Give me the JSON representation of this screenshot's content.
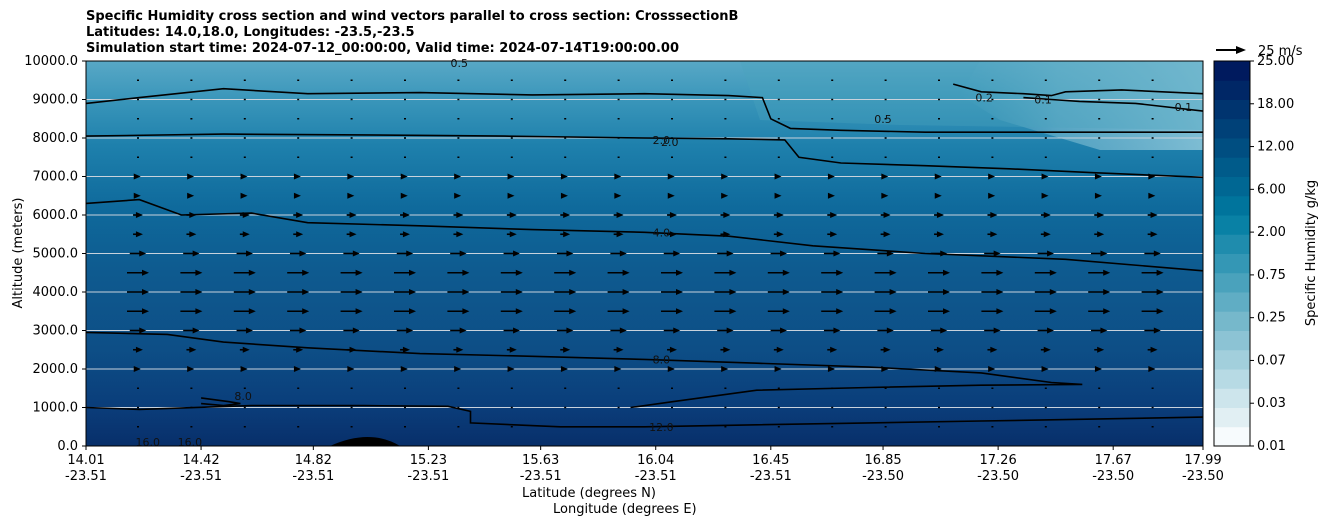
{
  "chart_data": {
    "type": "contour",
    "title_lines": [
      "Specific Humidity cross section and wind vectors parallel to cross section: CrosssectionB",
      "Latitudes: 14.0,18.0, Longitudes: -23.5,-23.5",
      "Simulation start time: 2024-07-12_00:00:00, Valid time: 2024-07-14T19:00:00.00"
    ],
    "xlabel_lines": [
      "Latitude (degrees N)",
      "Longitude (degrees E)"
    ],
    "ylabel": "Altitude (meters)",
    "x_range": [
      14.01,
      17.99
    ],
    "y_range": [
      0,
      10000
    ],
    "x_ticks": [
      {
        "lat": "14.01",
        "lon": "-23.51",
        "value": 14.01
      },
      {
        "lat": "14.42",
        "lon": "-23.51",
        "value": 14.42
      },
      {
        "lat": "14.82",
        "lon": "-23.51",
        "value": 14.82
      },
      {
        "lat": "15.23",
        "lon": "-23.51",
        "value": 15.23
      },
      {
        "lat": "15.63",
        "lon": "-23.51",
        "value": 15.63
      },
      {
        "lat": "16.04",
        "lon": "-23.51",
        "value": 16.04
      },
      {
        "lat": "16.45",
        "lon": "-23.51",
        "value": 16.45
      },
      {
        "lat": "16.85",
        "lon": "-23.50",
        "value": 16.85
      },
      {
        "lat": "17.26",
        "lon": "-23.50",
        "value": 17.26
      },
      {
        "lat": "17.67",
        "lon": "-23.50",
        "value": 17.67
      },
      {
        "lat": "17.99",
        "lon": "-23.50",
        "value": 17.99
      }
    ],
    "y_ticks": [
      {
        "label": "0.0",
        "value": 0
      },
      {
        "label": "1000.0",
        "value": 1000
      },
      {
        "label": "2000.0",
        "value": 2000
      },
      {
        "label": "3000.0",
        "value": 3000
      },
      {
        "label": "4000.0",
        "value": 4000
      },
      {
        "label": "5000.0",
        "value": 5000
      },
      {
        "label": "6000.0",
        "value": 6000
      },
      {
        "label": "7000.0",
        "value": 7000
      },
      {
        "label": "8000.0",
        "value": 8000
      },
      {
        "label": "9000.0",
        "value": 9000
      },
      {
        "label": "10000.0",
        "value": 10000
      }
    ],
    "colorbar": {
      "label": "Specific Humidity g/kg",
      "levels": [
        "0.01",
        "0.02",
        "0.03",
        "0.05",
        "0.07",
        "0.1",
        "0.15",
        "0.25",
        "0.35",
        "0.5",
        "0.75",
        "1.0",
        "2.00",
        "3.00",
        "6.00",
        "8.00",
        "12.00",
        "15.00",
        "18.00",
        "21.00",
        "25.00"
      ],
      "tick_labels": [
        "0.01",
        "0.03",
        "0.07",
        "0.25",
        "0.75",
        "2.00",
        "6.00",
        "12.00",
        "18.00",
        "25.00"
      ],
      "colors": [
        "#f7fbfd",
        "#e1eff3",
        "#cde5ec",
        "#b7dae4",
        "#a2cfdc",
        "#8cc3d4",
        "#76b8cb",
        "#60adc4",
        "#4aa2bc",
        "#3497b5",
        "#1f8cad",
        "#0981a5",
        "#00749c",
        "#006793",
        "#005b8a",
        "#004e81",
        "#004178",
        "#00346f",
        "#002766",
        "#001a5e"
      ]
    },
    "wind_reference": {
      "label": "25 m/s",
      "value": 25
    },
    "contour_labels": [
      {
        "text": "2.0",
        "x": 16.06,
        "y": 7950
      },
      {
        "text": "2.0",
        "x": 16.09,
        "y": 7900
      },
      {
        "text": "4.0",
        "x": 16.06,
        "y": 5550
      },
      {
        "text": "8.0",
        "x": 16.06,
        "y": 2250
      },
      {
        "text": "12.0",
        "x": 16.06,
        "y": 500
      },
      {
        "text": "8.0",
        "x": 14.57,
        "y": 1300
      },
      {
        "text": "16.0",
        "x": 14.23,
        "y": 100
      },
      {
        "text": "16.0",
        "x": 14.38,
        "y": 100
      },
      {
        "text": "0.5",
        "x": 15.34,
        "y": 9950
      },
      {
        "text": "0.5",
        "x": 16.85,
        "y": 8500
      },
      {
        "text": "0.2",
        "x": 17.21,
        "y": 9050
      },
      {
        "text": "0.1",
        "x": 17.42,
        "y": 9000
      },
      {
        "text": "0.1",
        "x": 17.92,
        "y": 8800
      }
    ],
    "contours": [
      {
        "level": "0.5",
        "points": [
          [
            14.01,
            8900
          ],
          [
            14.2,
            9050
          ],
          [
            14.5,
            9280
          ],
          [
            14.8,
            9150
          ],
          [
            15.2,
            9180
          ],
          [
            15.6,
            9120
          ],
          [
            16.0,
            9150
          ],
          [
            16.3,
            9100
          ],
          [
            16.42,
            9050
          ],
          [
            16.45,
            8500
          ],
          [
            16.52,
            8250
          ],
          [
            16.7,
            8200
          ],
          [
            17.0,
            8150
          ],
          [
            17.4,
            8150
          ],
          [
            17.7,
            8150
          ],
          [
            17.99,
            8150
          ]
        ]
      },
      {
        "level": "2.0",
        "points": [
          [
            14.01,
            8050
          ],
          [
            14.5,
            8100
          ],
          [
            15.0,
            8080
          ],
          [
            15.5,
            8050
          ],
          [
            16.0,
            8000
          ],
          [
            16.3,
            7980
          ],
          [
            16.5,
            7950
          ],
          [
            16.55,
            7500
          ],
          [
            16.7,
            7350
          ],
          [
            17.0,
            7280
          ],
          [
            17.3,
            7200
          ],
          [
            17.6,
            7100
          ],
          [
            17.99,
            6980
          ]
        ]
      },
      {
        "level": "4.0",
        "points": [
          [
            14.01,
            6300
          ],
          [
            14.2,
            6400
          ],
          [
            14.35,
            6000
          ],
          [
            14.6,
            6050
          ],
          [
            14.8,
            5800
          ],
          [
            15.2,
            5720
          ],
          [
            15.6,
            5620
          ],
          [
            16.0,
            5550
          ],
          [
            16.3,
            5450
          ],
          [
            16.6,
            5200
          ],
          [
            17.0,
            5000
          ],
          [
            17.5,
            4850
          ],
          [
            17.99,
            4550
          ]
        ]
      },
      {
        "level": "8.0",
        "points": [
          [
            14.01,
            2950
          ],
          [
            14.3,
            2900
          ],
          [
            14.5,
            2700
          ],
          [
            14.8,
            2550
          ],
          [
            15.2,
            2400
          ],
          [
            15.6,
            2330
          ],
          [
            16.0,
            2250
          ],
          [
            16.4,
            2150
          ],
          [
            16.8,
            2050
          ],
          [
            17.2,
            1900
          ],
          [
            17.45,
            1650
          ],
          [
            17.56,
            1600
          ],
          [
            17.2,
            1580
          ],
          [
            16.8,
            1520
          ],
          [
            16.4,
            1450
          ],
          [
            16.1,
            1150
          ],
          [
            15.95,
            1000
          ],
          [
            16.1,
            1150
          ]
        ]
      },
      {
        "level": "12.0",
        "points": [
          [
            14.01,
            1000
          ],
          [
            14.2,
            950
          ],
          [
            14.6,
            1050
          ],
          [
            15.0,
            1050
          ],
          [
            15.3,
            1030
          ],
          [
            15.38,
            900
          ],
          [
            15.38,
            600
          ],
          [
            15.7,
            500
          ],
          [
            16.0,
            500
          ],
          [
            16.4,
            550
          ],
          [
            16.8,
            600
          ],
          [
            17.2,
            650
          ],
          [
            17.6,
            700
          ],
          [
            17.99,
            750
          ]
        ]
      },
      {
        "level": "8.0",
        "points": [
          [
            14.42,
            1250
          ],
          [
            14.52,
            1150
          ],
          [
            14.56,
            1100
          ],
          [
            14.5,
            1050
          ],
          [
            14.42,
            1100
          ]
        ]
      },
      {
        "level": "0.2",
        "points": [
          [
            17.1,
            9400
          ],
          [
            17.2,
            9200
          ],
          [
            17.35,
            9150
          ],
          [
            17.45,
            9100
          ],
          [
            17.5,
            9200
          ],
          [
            17.7,
            9250
          ],
          [
            17.99,
            9150
          ]
        ]
      },
      {
        "level": "0.1",
        "points": [
          [
            17.35,
            9050
          ],
          [
            17.45,
            9000
          ],
          [
            17.55,
            8950
          ],
          [
            17.75,
            8900
          ],
          [
            17.99,
            8700
          ]
        ]
      }
    ]
  }
}
